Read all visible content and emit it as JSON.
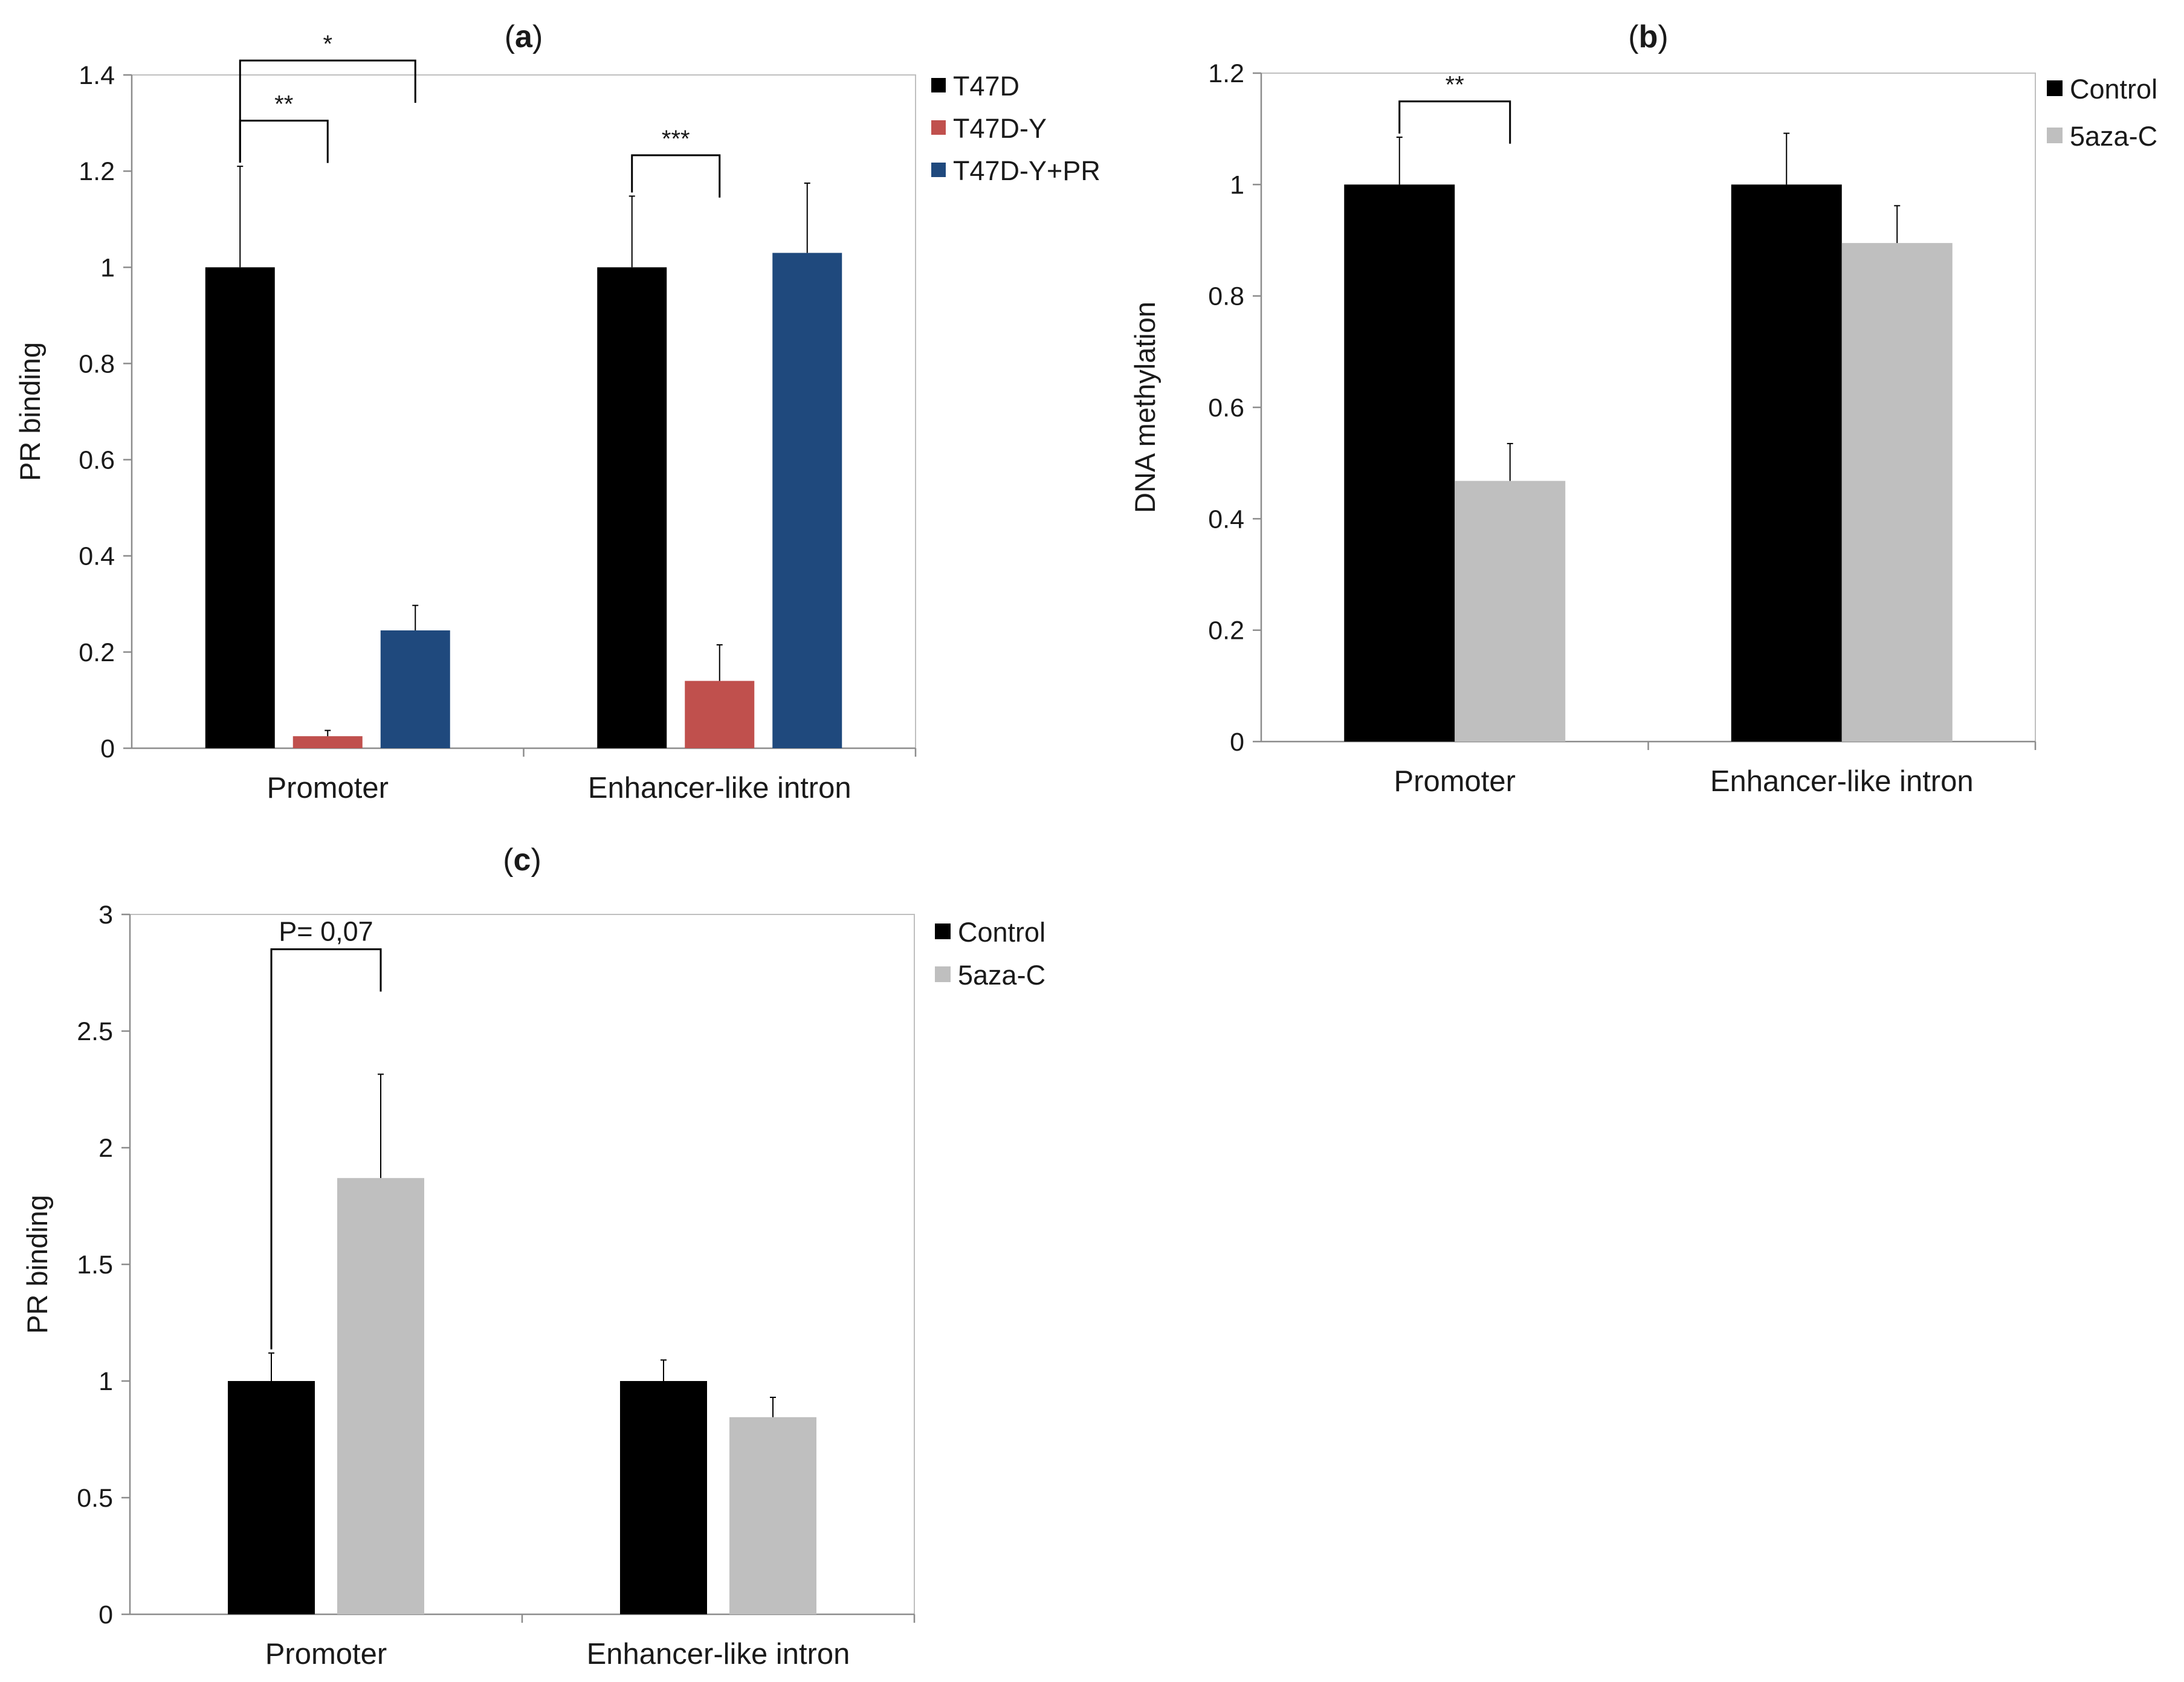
{
  "chart_data": [
    {
      "type": "bar",
      "panel": "a",
      "title": "(a)",
      "title_bold": "a",
      "xlabel": "",
      "ylabel": "PR binding",
      "ylim": [
        0,
        1.4
      ],
      "yticks": [
        0,
        0.2,
        0.4,
        0.6,
        0.8,
        1,
        1.2,
        1.4
      ],
      "categories": [
        "Promoter",
        "Enhancer-like intron"
      ],
      "series": [
        {
          "name": "T47D",
          "color": "#000000",
          "values": [
            1.0,
            1.0
          ],
          "errors": [
            0.21,
            0.148
          ]
        },
        {
          "name": "T47D-Y",
          "color": "#c0504d",
          "values": [
            0.025,
            0.14
          ],
          "errors": [
            0.012,
            0.075
          ]
        },
        {
          "name": "T47D-Y+PR",
          "color": "#1f497d",
          "values": [
            0.245,
            1.03
          ],
          "errors": [
            0.052,
            0.145
          ]
        }
      ],
      "legend": "right",
      "annotations": [
        {
          "label": "**",
          "category": 0,
          "from_series": 0,
          "to_series": 1
        },
        {
          "label": "*",
          "category": 0,
          "from_series": 0,
          "to_series": 2
        },
        {
          "label": "***",
          "category": 1,
          "from_series": 0,
          "to_series": 1
        }
      ]
    },
    {
      "type": "bar",
      "panel": "b",
      "title": "(b)",
      "title_bold": "b",
      "xlabel": "",
      "ylabel": "DNA methylation",
      "ylim": [
        0,
        1.2
      ],
      "yticks": [
        0,
        0.2,
        0.4,
        0.6,
        0.8,
        1,
        1.2
      ],
      "categories": [
        "Promoter",
        "Enhancer-like intron"
      ],
      "series": [
        {
          "name": "Control",
          "color": "#000000",
          "values": [
            1.0,
            1.0
          ],
          "errors": [
            0.085,
            0.092
          ]
        },
        {
          "name": "5aza-C",
          "color": "#bfbfbf",
          "values": [
            0.468,
            0.895
          ],
          "errors": [
            0.067,
            0.067
          ]
        }
      ],
      "legend": "right",
      "annotations": [
        {
          "label": "**",
          "category": 0,
          "from_series": 0,
          "to_series": 1
        }
      ]
    },
    {
      "type": "bar",
      "panel": "c",
      "title": "(c)",
      "title_bold": "c",
      "xlabel": "",
      "ylabel": "PR binding",
      "ylim": [
        0,
        3
      ],
      "yticks": [
        0,
        0.5,
        1,
        1.5,
        2,
        2.5,
        3
      ],
      "categories": [
        "Promoter",
        "Enhancer-like intron"
      ],
      "series": [
        {
          "name": "Control",
          "color": "#000000",
          "values": [
            1.0,
            1.0
          ],
          "errors": [
            0.12,
            0.09
          ]
        },
        {
          "name": "5aza-C",
          "color": "#bfbfbf",
          "values": [
            1.87,
            0.845
          ],
          "errors": [
            0.445,
            0.085
          ]
        }
      ],
      "legend": "right",
      "annotations": [
        {
          "label": "P= 0,07",
          "category": 0,
          "from_series": 0,
          "to_series": 1
        }
      ]
    }
  ]
}
